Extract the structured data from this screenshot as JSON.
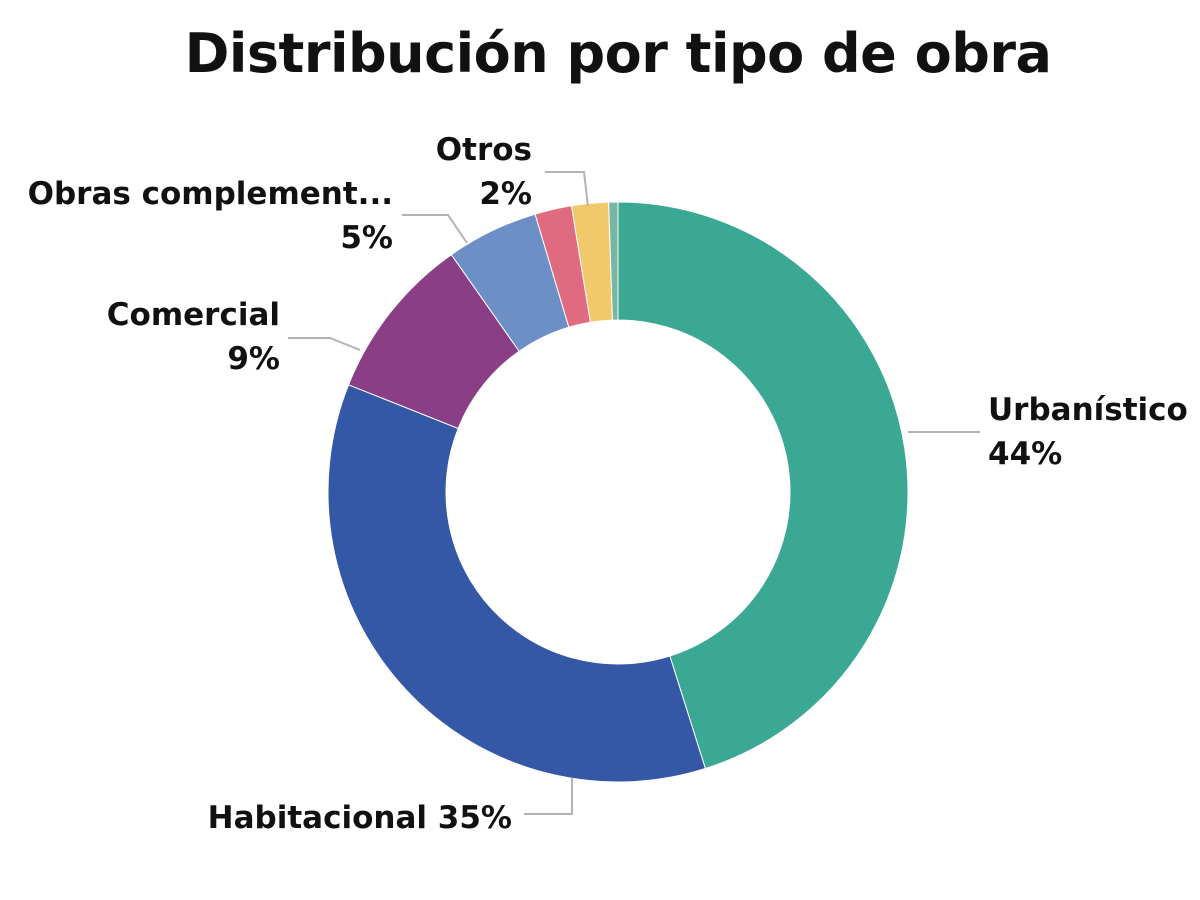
{
  "chart_data": {
    "type": "pie",
    "subtype": "donut",
    "title": "Distribución por tipo de obra",
    "legend": "none",
    "slices": [
      {
        "name": "Urbanístico",
        "value": 44,
        "label_lines": [
          "Urbanístico",
          "44%"
        ],
        "color": "#3BA893"
      },
      {
        "name": "Habitacional",
        "value": 35,
        "label_lines": [
          "Habitacional 35%"
        ],
        "color": "#3457A6"
      },
      {
        "name": "Comercial",
        "value": 9,
        "label_lines": [
          "Comercial",
          "9%"
        ],
        "color": "#8A3E85"
      },
      {
        "name": "Obras complement...",
        "value": 5,
        "label_lines": [
          "Obras complement...",
          "5%"
        ],
        "color": "#6C8FC6"
      },
      {
        "name": "Otros",
        "value": 2,
        "label_lines": [
          "Otros",
          "2%"
        ],
        "color": "#E06B80"
      },
      {
        "name": "",
        "value": 2,
        "label_lines": [],
        "color": "#F2C96A"
      },
      {
        "name": "",
        "value": 0.5,
        "label_lines": [],
        "color": "#77B5A5"
      }
    ]
  }
}
